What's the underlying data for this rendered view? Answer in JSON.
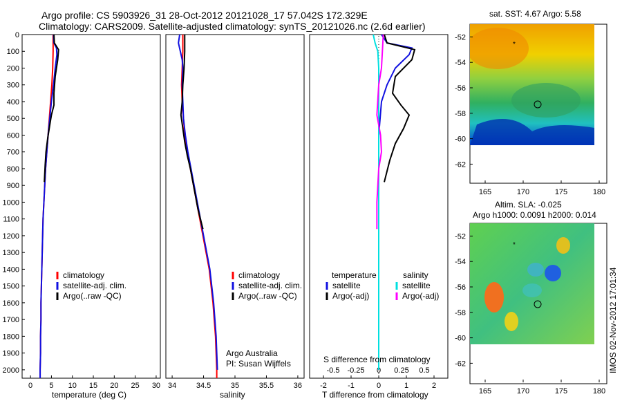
{
  "title": {
    "line1": "Argo profile: CS 5903926_31 28-Oct-2012 20121028_17 57.042S 172.329E",
    "line2": "Climatology: CARS2009. Satellite-adjusted climatology: synTS_20121026.nc (2.6d earlier)"
  },
  "colors": {
    "red": "#ff0000",
    "blue": "#1010e0",
    "black": "#000000",
    "cyan": "#00e0e0",
    "magenta": "#ff00ff"
  },
  "depth_ticks": [
    "0",
    "100",
    "200",
    "300",
    "400",
    "500",
    "600",
    "700",
    "800",
    "900",
    "1000",
    "1100",
    "1200",
    "1300",
    "1400",
    "1500",
    "1600",
    "1700",
    "1800",
    "1900",
    "2000"
  ],
  "temp_panel": {
    "xlabel": "temperature (deg C)",
    "xticks": [
      "0",
      "5",
      "10",
      "15",
      "20",
      "25",
      "30"
    ],
    "legend": [
      "climatology",
      "satellite-adj. clim.",
      "Argo(..raw -QC)"
    ]
  },
  "sal_panel": {
    "xlabel": "salinity",
    "xticks": [
      "34",
      "34.5",
      "35",
      "35.5",
      "36"
    ],
    "legend": [
      "climatology",
      "satellite-adj. clim.",
      "Argo(..raw -QC)"
    ],
    "note1": "Argo Australia",
    "note2": "PI: Susan Wijffels"
  },
  "diff_panel": {
    "xlabel": "T difference from climatology",
    "xticks": [
      "-2",
      "-1",
      "0",
      "1",
      "2"
    ],
    "s_label": "S difference from climatology",
    "s_ticks": [
      "-0.5",
      "-0.25",
      "0",
      "0.25",
      "0.5"
    ],
    "legend_t_head": "temperature",
    "legend_s_head": "salinity",
    "legend_t": [
      "satellite",
      "Argo(-adj)"
    ],
    "legend_s": [
      "satellite",
      "Argo(-adj)"
    ]
  },
  "map_sst": {
    "title": "sat. SST: 4.67  Argo: 5.58",
    "yticks": [
      "-52",
      "-54",
      "-56",
      "-58",
      "-60",
      "-62"
    ],
    "xticks": [
      "165",
      "170",
      "175",
      "180"
    ]
  },
  "map_sla": {
    "title1": "Altim. SLA: -0.025",
    "title2": "Argo h1000: 0.0091  h2000: 0.014",
    "yticks": [
      "-52",
      "-54",
      "-56",
      "-58",
      "-60",
      "-62"
    ],
    "xticks": [
      "165",
      "170",
      "175",
      "180"
    ]
  },
  "footer": "IMOS 02-Nov-2012 17:01:34",
  "chart_data": [
    {
      "type": "line",
      "xlabel": "temperature (deg C)",
      "xlim": [
        -2,
        31
      ],
      "ylim": [
        0,
        2050
      ],
      "y_reversed": true,
      "series": [
        {
          "name": "climatology",
          "color": "red",
          "points": [
            [
              5.4,
              0
            ],
            [
              5.4,
              100
            ],
            [
              5.3,
              200
            ],
            [
              5.1,
              300
            ],
            [
              4.8,
              400
            ],
            [
              4.5,
              500
            ],
            [
              4.2,
              600
            ],
            [
              3.9,
              700
            ],
            [
              3.6,
              800
            ],
            [
              3.4,
              900
            ],
            [
              3.2,
              1000
            ],
            [
              3.0,
              1100
            ],
            [
              2.9,
              1200
            ],
            [
              2.8,
              1300
            ],
            [
              2.7,
              1400
            ],
            [
              2.6,
              1500
            ],
            [
              2.5,
              1600
            ],
            [
              2.5,
              1700
            ],
            [
              2.4,
              1800
            ],
            [
              2.4,
              1900
            ],
            [
              2.3,
              2000
            ],
            [
              2.3,
              2050
            ]
          ]
        },
        {
          "name": "satellite-adj. clim.",
          "color": "blue",
          "points": [
            [
              5.5,
              0
            ],
            [
              5.6,
              50
            ],
            [
              6.2,
              80
            ],
            [
              6.3,
              120
            ],
            [
              5.9,
              200
            ],
            [
              5.5,
              300
            ],
            [
              5.0,
              400
            ],
            [
              4.6,
              500
            ],
            [
              4.2,
              600
            ],
            [
              3.9,
              700
            ],
            [
              3.6,
              800
            ],
            [
              3.4,
              900
            ],
            [
              3.2,
              1000
            ],
            [
              3.0,
              1100
            ],
            [
              2.9,
              1200
            ],
            [
              2.8,
              1300
            ],
            [
              2.7,
              1400
            ],
            [
              2.6,
              1500
            ],
            [
              2.5,
              1600
            ],
            [
              2.5,
              1700
            ],
            [
              2.4,
              1800
            ],
            [
              2.4,
              1900
            ],
            [
              2.3,
              2000
            ],
            [
              2.3,
              2050
            ]
          ]
        },
        {
          "name": "Argo(..raw -QC)",
          "color": "black",
          "points": [
            [
              5.6,
              0
            ],
            [
              5.7,
              50
            ],
            [
              6.7,
              90
            ],
            [
              6.5,
              150
            ],
            [
              5.9,
              250
            ],
            [
              5.6,
              350
            ],
            [
              5.6,
              420
            ],
            [
              5.0,
              480
            ],
            [
              4.6,
              540
            ],
            [
              4.1,
              620
            ],
            [
              3.7,
              700
            ],
            [
              3.5,
              780
            ],
            [
              3.3,
              880
            ]
          ]
        }
      ]
    },
    {
      "type": "line",
      "xlabel": "salinity",
      "xlim": [
        33.9,
        36.1
      ],
      "ylim": [
        0,
        2050
      ],
      "y_reversed": true,
      "series": [
        {
          "name": "climatology",
          "color": "red",
          "points": [
            [
              34.17,
              0
            ],
            [
              34.17,
              100
            ],
            [
              34.16,
              200
            ],
            [
              34.15,
              300
            ],
            [
              34.16,
              400
            ],
            [
              34.18,
              500
            ],
            [
              34.2,
              600
            ],
            [
              34.24,
              700
            ],
            [
              34.29,
              800
            ],
            [
              34.34,
              900
            ],
            [
              34.39,
              1000
            ],
            [
              34.44,
              1100
            ],
            [
              34.49,
              1200
            ],
            [
              34.54,
              1300
            ],
            [
              34.59,
              1400
            ],
            [
              34.62,
              1500
            ],
            [
              34.65,
              1600
            ],
            [
              34.67,
              1700
            ],
            [
              34.69,
              1800
            ],
            [
              34.7,
              1900
            ],
            [
              34.71,
              2000
            ],
            [
              34.71,
              2050
            ]
          ]
        },
        {
          "name": "satellite-adj. clim.",
          "color": "blue",
          "points": [
            [
              34.12,
              0
            ],
            [
              34.1,
              50
            ],
            [
              34.13,
              100
            ],
            [
              34.16,
              150
            ],
            [
              34.17,
              200
            ],
            [
              34.16,
              300
            ],
            [
              34.17,
              400
            ],
            [
              34.18,
              500
            ],
            [
              34.21,
              600
            ],
            [
              34.25,
              700
            ],
            [
              34.3,
              800
            ],
            [
              34.35,
              900
            ],
            [
              34.4,
              1000
            ],
            [
              34.45,
              1100
            ],
            [
              34.5,
              1200
            ],
            [
              34.55,
              1300
            ],
            [
              34.6,
              1400
            ],
            [
              34.63,
              1500
            ],
            [
              34.66,
              1600
            ],
            [
              34.68,
              1700
            ],
            [
              34.7,
              1800
            ],
            [
              34.71,
              1900
            ],
            [
              34.72,
              2000
            ]
          ]
        },
        {
          "name": "Argo(..raw -QC)",
          "color": "black",
          "points": [
            [
              34.2,
              0
            ],
            [
              34.2,
              100
            ],
            [
              34.19,
              200
            ],
            [
              34.17,
              300
            ],
            [
              34.16,
              400
            ],
            [
              34.14,
              480
            ],
            [
              34.17,
              560
            ],
            [
              34.2,
              640
            ],
            [
              34.24,
              720
            ],
            [
              34.29,
              800
            ],
            [
              34.33,
              880
            ],
            [
              34.37,
              960
            ],
            [
              34.41,
              1040
            ],
            [
              34.45,
              1100
            ],
            [
              34.49,
              1160
            ]
          ]
        }
      ]
    },
    {
      "type": "line",
      "xlabel": "T difference from climatology",
      "x2label": "S difference from climatology",
      "xlim": [
        -2.5,
        2.5
      ],
      "ylim": [
        0,
        2050
      ],
      "y_reversed": true,
      "series": [
        {
          "name": "temperature satellite",
          "color": "blue",
          "points": [
            [
              0.1,
              0
            ],
            [
              0.3,
              50
            ],
            [
              1.2,
              80
            ],
            [
              1.1,
              120
            ],
            [
              0.6,
              200
            ],
            [
              0.3,
              300
            ],
            [
              0.1,
              400
            ],
            [
              0.0,
              600
            ],
            [
              0.0,
              2000
            ]
          ]
        },
        {
          "name": "temperature Argo(-adj)",
          "color": "black",
          "points": [
            [
              0.2,
              0
            ],
            [
              0.3,
              50
            ],
            [
              1.3,
              90
            ],
            [
              1.2,
              150
            ],
            [
              0.6,
              250
            ],
            [
              0.5,
              350
            ],
            [
              0.8,
              420
            ],
            [
              1.1,
              480
            ],
            [
              0.9,
              560
            ],
            [
              0.6,
              650
            ],
            [
              0.4,
              750
            ],
            [
              0.2,
              880
            ]
          ]
        },
        {
          "name": "salinity satellite",
          "color": "cyan",
          "points": [
            [
              -0.06,
              0
            ],
            [
              -0.04,
              50
            ],
            [
              -0.01,
              100
            ],
            [
              0.0,
              200
            ],
            [
              0.0,
              2000
            ]
          ]
        },
        {
          "name": "salinity Argo(-adj)",
          "color": "magenta",
          "points": [
            [
              0.05,
              0
            ],
            [
              0.03,
              200
            ],
            [
              0.0,
              300
            ],
            [
              -0.02,
              480
            ],
            [
              0.02,
              600
            ],
            [
              0.03,
              700
            ],
            [
              0.0,
              800
            ],
            [
              -0.02,
              1000
            ],
            [
              -0.02,
              1160
            ]
          ]
        }
      ]
    },
    {
      "type": "heatmap",
      "title": "sat. SST: 4.67  Argo: 5.58",
      "xlim": [
        163,
        181
      ],
      "ylim": [
        -63.5,
        -51
      ],
      "data_extent": {
        "lon": [
          163,
          180
        ],
        "lat": [
          -60,
          -51
        ]
      },
      "argo_position": [
        172.33,
        -57.04
      ]
    },
    {
      "type": "heatmap",
      "title": "Altim. SLA: -0.025",
      "xlim": [
        163,
        181
      ],
      "ylim": [
        -63.5,
        -51
      ],
      "data_extent": {
        "lon": [
          163,
          180
        ],
        "lat": [
          -60,
          -51
        ]
      },
      "argo_position": [
        172.33,
        -57.04
      ]
    }
  ]
}
